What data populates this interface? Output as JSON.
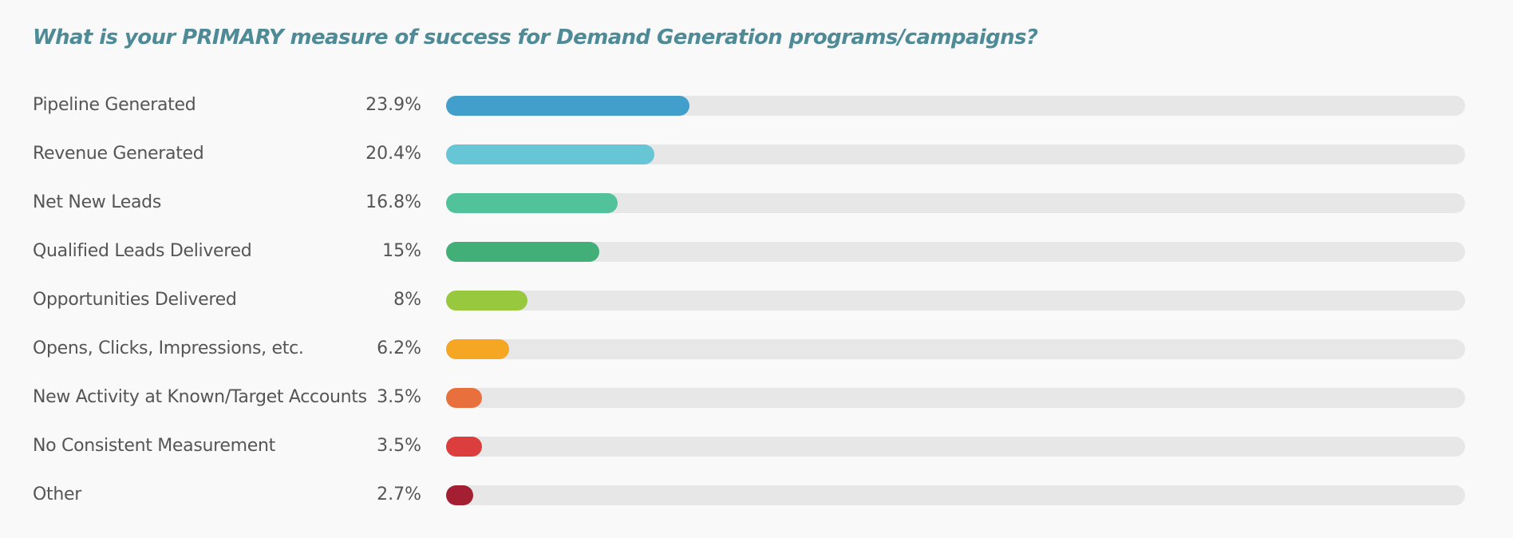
{
  "title": "What is your PRIMARY measure of success for Demand Generation programs/campaigns?",
  "chart_data": {
    "type": "bar",
    "orientation": "horizontal",
    "title": "What is your PRIMARY measure of success for Demand Generation programs/campaigns?",
    "categories": [
      "Pipeline Generated",
      "Revenue Generated",
      "Net New Leads",
      "Qualified Leads Delivered",
      "Opportunities Delivered",
      "Opens, Clicks, Impressions, etc.",
      "New Activity at Known/Target Accounts",
      "No Consistent Measurement",
      "Other"
    ],
    "values": [
      23.9,
      20.4,
      16.8,
      15,
      8,
      6.2,
      3.5,
      3.5,
      2.7
    ],
    "value_labels": [
      "23.9%",
      "20.4%",
      "16.8%",
      "15%",
      "8%",
      "6.2%",
      "3.5%",
      "3.5%",
      "2.7%"
    ],
    "colors": [
      "#429fcc",
      "#66c6d6",
      "#52c29b",
      "#43af78",
      "#98c83e",
      "#f5a623",
      "#e8703d",
      "#dc3e3e",
      "#a51f32"
    ],
    "track_color": "#e7e7e7",
    "xlim": [
      0,
      100
    ],
    "unit": "%"
  }
}
